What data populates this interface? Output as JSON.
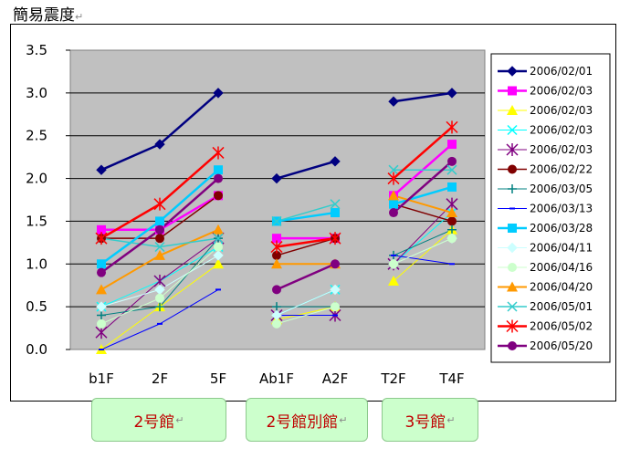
{
  "title": "簡易震度",
  "return_mark": "↵",
  "groups": [
    {
      "label": "2号館"
    },
    {
      "label": "2号館別館"
    },
    {
      "label": "3号館"
    }
  ],
  "chart_data": {
    "type": "line",
    "ylim": [
      0,
      3.5
    ],
    "yticks": [
      "0.0",
      "0.5",
      "1.0",
      "1.5",
      "2.0",
      "2.5",
      "3.0",
      "3.5"
    ],
    "categories": [
      "b1F",
      "2F",
      "5F",
      "Ab1F",
      "A2F",
      "T2F",
      "T4F"
    ],
    "segments": [
      [
        0,
        1,
        2
      ],
      [
        3,
        4
      ],
      [
        5,
        6
      ]
    ],
    "grid": true,
    "legend_position": "right",
    "series": [
      {
        "name": "2006/02/01",
        "color": "#000080",
        "marker": "diamond",
        "width": 2.5,
        "values": [
          2.1,
          2.4,
          3.0,
          2.0,
          2.2,
          2.9,
          3.0
        ]
      },
      {
        "name": "2006/02/03",
        "color": "#ff00ff",
        "marker": "square",
        "width": 2.5,
        "values": [
          1.4,
          1.4,
          1.8,
          1.3,
          1.3,
          1.8,
          2.4
        ]
      },
      {
        "name": "2006/02/03",
        "color": "#ffff00",
        "marker": "triangle",
        "width": 1,
        "values": [
          0.0,
          0.5,
          1.0,
          0.35,
          0.5,
          0.8,
          1.4
        ]
      },
      {
        "name": "2006/02/03",
        "color": "#00ffff",
        "marker": "x",
        "width": 1,
        "values": [
          0.5,
          0.8,
          1.2,
          0.4,
          0.7,
          1.0,
          1.6
        ]
      },
      {
        "name": "2006/02/03",
        "color": "#800080",
        "marker": "star",
        "width": 1,
        "values": [
          0.2,
          0.8,
          1.3,
          0.4,
          0.4,
          1.0,
          1.7
        ]
      },
      {
        "name": "2006/02/22",
        "color": "#800000",
        "marker": "circle",
        "width": 1.5,
        "values": [
          1.3,
          1.3,
          1.8,
          1.1,
          1.3,
          1.7,
          1.5
        ]
      },
      {
        "name": "2006/03/05",
        "color": "#008080",
        "marker": "plus",
        "width": 1,
        "values": [
          0.4,
          0.5,
          1.3,
          0.5,
          0.5,
          1.1,
          1.4
        ]
      },
      {
        "name": "2006/03/13",
        "color": "#0000ff",
        "marker": "dash",
        "width": 1,
        "values": [
          0.0,
          0.3,
          0.7,
          0.4,
          0.4,
          1.1,
          1.0
        ]
      },
      {
        "name": "2006/03/28",
        "color": "#00ccff",
        "marker": "square",
        "width": 2.5,
        "values": [
          1.0,
          1.5,
          2.1,
          1.5,
          1.6,
          1.7,
          1.9
        ]
      },
      {
        "name": "2006/04/11",
        "color": "#ccffff",
        "marker": "diamond",
        "width": 1,
        "values": [
          0.5,
          0.7,
          1.1,
          0.4,
          0.7,
          1.0,
          1.3
        ]
      },
      {
        "name": "2006/04/16",
        "color": "#ccffcc",
        "marker": "circle",
        "width": 1,
        "values": [
          0.3,
          0.6,
          1.2,
          0.3,
          0.5,
          1.0,
          1.3
        ]
      },
      {
        "name": "2006/04/20",
        "color": "#ff9900",
        "marker": "triangle",
        "width": 2,
        "values": [
          0.7,
          1.1,
          1.4,
          1.0,
          1.0,
          1.8,
          1.6
        ]
      },
      {
        "name": "2006/05/01",
        "color": "#33cccc",
        "marker": "x",
        "width": 1.5,
        "values": [
          1.3,
          1.2,
          1.3,
          1.5,
          1.7,
          2.1,
          2.1
        ]
      },
      {
        "name": "2006/05/02",
        "color": "#ff0000",
        "marker": "star",
        "width": 2.5,
        "values": [
          1.3,
          1.7,
          2.3,
          1.2,
          1.3,
          2.0,
          2.6
        ]
      },
      {
        "name": "2006/05/20",
        "color": "#800080",
        "marker": "circle",
        "width": 2.5,
        "values": [
          0.9,
          1.4,
          2.0,
          0.7,
          1.0,
          1.6,
          2.2
        ]
      }
    ]
  }
}
